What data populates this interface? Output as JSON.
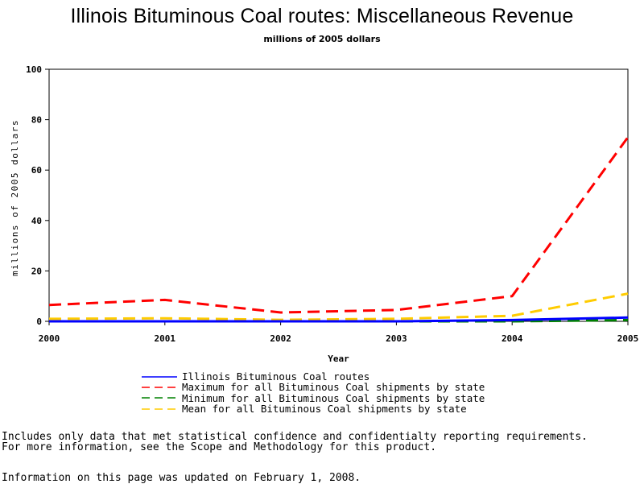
{
  "chart_data": {
    "type": "line",
    "title": "Illinois Bituminous Coal routes: Miscellaneous Revenue",
    "subtitle": "millions of 2005 dollars",
    "xlabel": "Year",
    "ylabel": "millions of 2005 dollars",
    "x": [
      2000,
      2001,
      2002,
      2003,
      2004,
      2005
    ],
    "xlim": [
      2000,
      2005
    ],
    "ylim": [
      0,
      100
    ],
    "yticks": [
      0,
      20,
      40,
      60,
      80,
      100
    ],
    "grid": false,
    "legend_position": "bottom",
    "series": [
      {
        "name": "Illinois Bituminous Coal routes",
        "values": [
          0,
          0,
          0,
          0,
          0.5,
          1.5
        ],
        "color": "#0000ff",
        "dash": "solid"
      },
      {
        "name": "Maximum for all Bituminous Coal shipments by state",
        "values": [
          6.5,
          8.5,
          3.5,
          4.5,
          10,
          73
        ],
        "color": "#ff0000",
        "dash": "dashed"
      },
      {
        "name": "Minimum for all Bituminous Coal shipments by state",
        "values": [
          0,
          0,
          0,
          0,
          0,
          0.5
        ],
        "color": "#008000",
        "dash": "dashed"
      },
      {
        "name": "Mean for all Bituminous Coal shipments by state",
        "values": [
          1,
          1.2,
          0.6,
          1,
          2.2,
          11
        ],
        "color": "#ffcc00",
        "dash": "dashed"
      }
    ]
  },
  "footnotes": {
    "line1": "Includes only data that met statistical confidence and confidentialty reporting requirements.",
    "line2": "For more information, see the Scope and Methodology for this product.",
    "line3": "Information on this page was updated on February 1, 2008."
  }
}
